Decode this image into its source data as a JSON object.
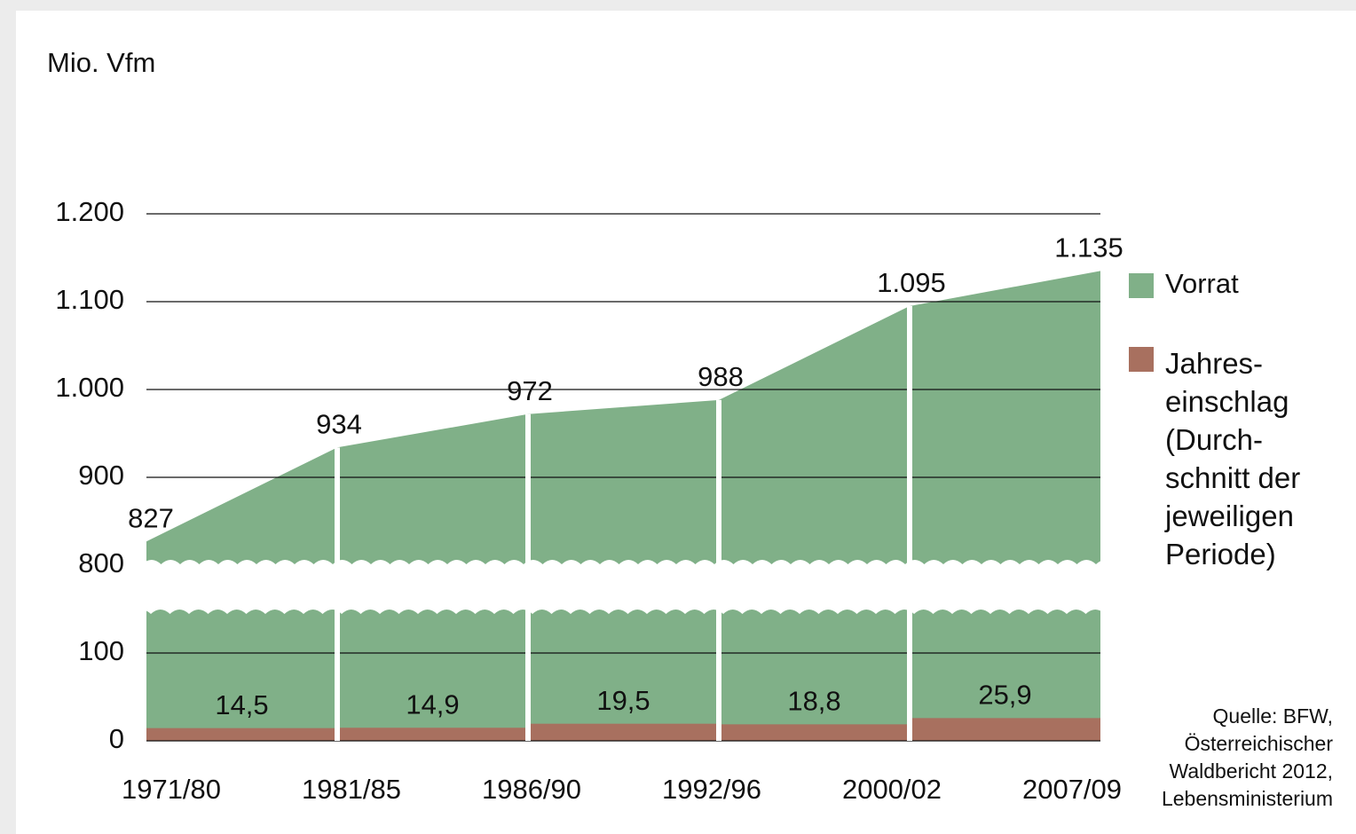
{
  "chart_data": {
    "type": "area",
    "y_label": "Mio. Vfm",
    "categories": [
      "1971/80",
      "1981/85",
      "1986/90",
      "1992/96",
      "2000/02",
      "2007/09"
    ],
    "series": [
      {
        "name": "Vorrat",
        "color": "#80b088",
        "values": [
          827,
          934,
          972,
          988,
          1095,
          1135
        ],
        "value_labels": [
          "827",
          "934",
          "972",
          "988",
          "1.095",
          "1.135"
        ]
      },
      {
        "name": "Jahres-\neinschlag\n(Durch-\nschnitt der\njeweiligen\nPeriode)",
        "color": "#a8705f",
        "values": [
          null,
          14.5,
          14.9,
          19.5,
          18.8,
          25.9
        ],
        "value_labels": [
          null,
          "14,5",
          "14,9",
          "19,5",
          "18,8",
          "25,9"
        ]
      }
    ],
    "ylim": [
      0,
      1200
    ],
    "yticks": [
      0,
      100,
      800,
      900,
      {
        "value": 1000,
        "label": "1.000"
      },
      {
        "value": 1100,
        "label": "1.100"
      },
      {
        "value": 1200,
        "label": "1.200"
      }
    ],
    "grid": true,
    "source": "Quelle: BFW,\nÖsterreichischer\nWaldbericht 2012,\nLebensministerium"
  }
}
